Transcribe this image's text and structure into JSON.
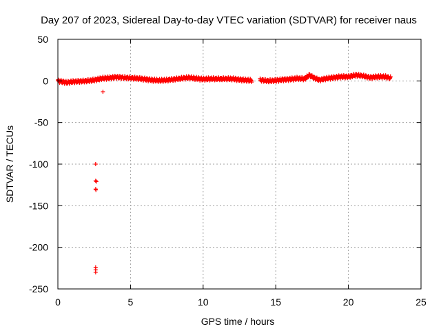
{
  "chart_data": {
    "type": "scatter",
    "title": "Day 207 of 2023, Sidereal Day-to-day VTEC variation (SDTVAR) for receiver naus",
    "xlabel": "GPS time / hours",
    "ylabel": "SDTVAR / TECUs",
    "xlim": [
      0,
      25
    ],
    "ylim": [
      -250,
      50
    ],
    "xticks": [
      0,
      5,
      10,
      15,
      20,
      25
    ],
    "yticks": [
      50,
      0,
      -50,
      -100,
      -150,
      -200,
      -250
    ],
    "grid": true,
    "marker": "+",
    "series": [
      {
        "name": "SDTVAR",
        "color": "#ff0000",
        "trend": [
          [
            0.0,
            0.0
          ],
          [
            0.3,
            -1.0
          ],
          [
            0.6,
            -2.0
          ],
          [
            1.0,
            -1.0
          ],
          [
            1.5,
            -0.5
          ],
          [
            2.0,
            0.0
          ],
          [
            2.5,
            1.0
          ],
          [
            2.8,
            2.0
          ],
          [
            3.0,
            3.0
          ],
          [
            3.5,
            3.5
          ],
          [
            4.0,
            4.5
          ],
          [
            4.5,
            4.0
          ],
          [
            5.0,
            3.5
          ],
          [
            5.5,
            3.0
          ],
          [
            6.0,
            2.0
          ],
          [
            6.5,
            1.0
          ],
          [
            7.0,
            0.5
          ],
          [
            7.5,
            1.0
          ],
          [
            8.0,
            2.0
          ],
          [
            8.5,
            3.0
          ],
          [
            9.0,
            4.0
          ],
          [
            9.5,
            3.0
          ],
          [
            10.0,
            2.0
          ],
          [
            10.5,
            2.5
          ],
          [
            11.0,
            2.5
          ],
          [
            11.5,
            2.5
          ],
          [
            12.0,
            2.5
          ],
          [
            12.5,
            1.5
          ],
          [
            12.9,
            1.0
          ],
          [
            13.3,
            0.5
          ],
          [
            14.0,
            1.0
          ],
          [
            14.5,
            0.0
          ],
          [
            15.0,
            0.5
          ],
          [
            15.5,
            1.5
          ],
          [
            16.0,
            2.0
          ],
          [
            16.5,
            3.0
          ],
          [
            17.0,
            2.5
          ],
          [
            17.3,
            7.0
          ],
          [
            17.6,
            4.0
          ],
          [
            18.0,
            1.0
          ],
          [
            18.5,
            3.0
          ],
          [
            19.0,
            4.0
          ],
          [
            19.5,
            5.0
          ],
          [
            20.0,
            5.0
          ],
          [
            20.5,
            7.0
          ],
          [
            21.0,
            6.0
          ],
          [
            21.5,
            4.0
          ],
          [
            22.0,
            5.0
          ],
          [
            22.5,
            5.0
          ],
          [
            22.9,
            3.5
          ]
        ],
        "outliers": [
          [
            2.6,
            -100
          ],
          [
            2.6,
            -120
          ],
          [
            2.65,
            -121
          ],
          [
            2.6,
            -130
          ],
          [
            2.62,
            -131
          ],
          [
            2.6,
            -224
          ],
          [
            2.6,
            -227
          ],
          [
            2.6,
            -230
          ],
          [
            3.1,
            -13
          ]
        ]
      }
    ]
  }
}
